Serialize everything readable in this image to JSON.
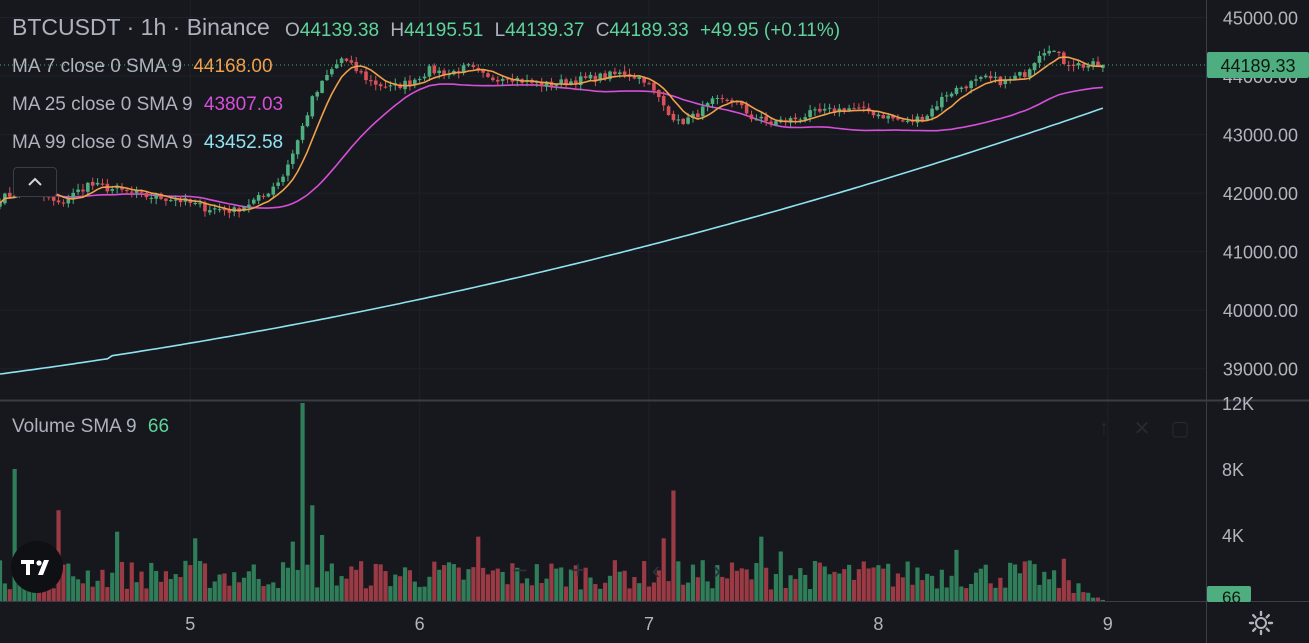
{
  "header": {
    "symbol": "BTCUSDT",
    "interval": "1h",
    "exchange": "Binance",
    "sep": "·",
    "open_label": "O",
    "open": "44139.38",
    "high_label": "H",
    "high": "44195.51",
    "low_label": "L",
    "low": "44139.37",
    "close_label": "C",
    "close": "44189.33",
    "change": "+49.95 (+0.11%)"
  },
  "indicators": [
    {
      "label": "MA 7 close 0 SMA 9",
      "value": "44168.00",
      "color": "#f0a04b"
    },
    {
      "label": "MA 25 close 0 SMA 9",
      "value": "43807.03",
      "color": "#d64fd9"
    },
    {
      "label": "MA 99 close 0 SMA 9",
      "value": "43452.58",
      "color": "#8fe3f0"
    }
  ],
  "volume_legend": {
    "label": "Volume SMA 9",
    "value": "66"
  },
  "price_tag": "44189.33",
  "volume_tag": "66",
  "colors": {
    "up": "#4fae7f",
    "down": "#d7525a",
    "up_vol": "#2f7d59",
    "down_vol": "#9a3a44",
    "bg": "#16181d"
  },
  "chart_data": {
    "type": "candlestick",
    "price_axis": {
      "ylim": [
        38500,
        45300
      ],
      "ticks": [
        "45000.00",
        "44000.00",
        "43000.00",
        "42000.00",
        "41000.00",
        "40000.00",
        "39000.00"
      ]
    },
    "volume_axis": {
      "ylim": [
        0,
        12000
      ],
      "ticks": [
        "12K",
        "8K",
        "4K"
      ]
    },
    "x_ticks": [
      "5",
      "6",
      "7",
      "8",
      "9"
    ],
    "ohlc_anchors": [
      {
        "i": 0,
        "c": 41900
      },
      {
        "i": 6,
        "c": 42100
      },
      {
        "i": 12,
        "c": 41800
      },
      {
        "i": 18,
        "c": 42150
      },
      {
        "i": 24,
        "c": 42050
      },
      {
        "i": 30,
        "c": 41950
      },
      {
        "i": 36,
        "c": 41900
      },
      {
        "i": 42,
        "c": 41750
      },
      {
        "i": 48,
        "c": 41700
      },
      {
        "i": 54,
        "c": 41950
      },
      {
        "i": 58,
        "c": 42300
      },
      {
        "i": 61,
        "c": 42900
      },
      {
        "i": 64,
        "c": 43600
      },
      {
        "i": 67,
        "c": 44000
      },
      {
        "i": 70,
        "c": 44300
      },
      {
        "i": 73,
        "c": 44100
      },
      {
        "i": 76,
        "c": 43900
      },
      {
        "i": 80,
        "c": 43800
      },
      {
        "i": 84,
        "c": 43900
      },
      {
        "i": 88,
        "c": 44100
      },
      {
        "i": 92,
        "c": 44050
      },
      {
        "i": 96,
        "c": 44150
      },
      {
        "i": 100,
        "c": 43950
      },
      {
        "i": 104,
        "c": 44000
      },
      {
        "i": 108,
        "c": 43900
      },
      {
        "i": 112,
        "c": 43850
      },
      {
        "i": 116,
        "c": 43900
      },
      {
        "i": 120,
        "c": 43950
      },
      {
        "i": 124,
        "c": 44000
      },
      {
        "i": 128,
        "c": 44050
      },
      {
        "i": 132,
        "c": 43950
      },
      {
        "i": 136,
        "c": 43500
      },
      {
        "i": 139,
        "c": 43200
      },
      {
        "i": 142,
        "c": 43300
      },
      {
        "i": 146,
        "c": 43550
      },
      {
        "i": 150,
        "c": 43600
      },
      {
        "i": 154,
        "c": 43300
      },
      {
        "i": 158,
        "c": 43200
      },
      {
        "i": 162,
        "c": 43250
      },
      {
        "i": 166,
        "c": 43350
      },
      {
        "i": 170,
        "c": 43400
      },
      {
        "i": 174,
        "c": 43450
      },
      {
        "i": 178,
        "c": 43400
      },
      {
        "i": 182,
        "c": 43300
      },
      {
        "i": 186,
        "c": 43200
      },
      {
        "i": 190,
        "c": 43350
      },
      {
        "i": 194,
        "c": 43700
      },
      {
        "i": 198,
        "c": 43850
      },
      {
        "i": 202,
        "c": 43950
      },
      {
        "i": 206,
        "c": 43900
      },
      {
        "i": 210,
        "c": 44050
      },
      {
        "i": 213,
        "c": 44400
      },
      {
        "i": 215,
        "c": 44500
      },
      {
        "i": 218,
        "c": 44250
      },
      {
        "i": 222,
        "c": 44180
      },
      {
        "i": 226,
        "c": 44189
      }
    ],
    "ma7_last": 44168.0,
    "ma25_last": 43807.03,
    "ma99_last": 43452.58,
    "volume_spikes": [
      {
        "i": 3,
        "v": 8000
      },
      {
        "i": 12,
        "v": 5500
      },
      {
        "i": 24,
        "v": 4200
      },
      {
        "i": 40,
        "v": 3800
      },
      {
        "i": 60,
        "v": 3600
      },
      {
        "i": 62,
        "v": 12000
      },
      {
        "i": 64,
        "v": 5800
      },
      {
        "i": 66,
        "v": 4000
      },
      {
        "i": 98,
        "v": 3900
      },
      {
        "i": 136,
        "v": 3800
      },
      {
        "i": 138,
        "v": 6700
      },
      {
        "i": 156,
        "v": 3900
      },
      {
        "i": 160,
        "v": 3000
      },
      {
        "i": 196,
        "v": 3100
      },
      {
        "i": 218,
        "v": 4100
      }
    ]
  }
}
